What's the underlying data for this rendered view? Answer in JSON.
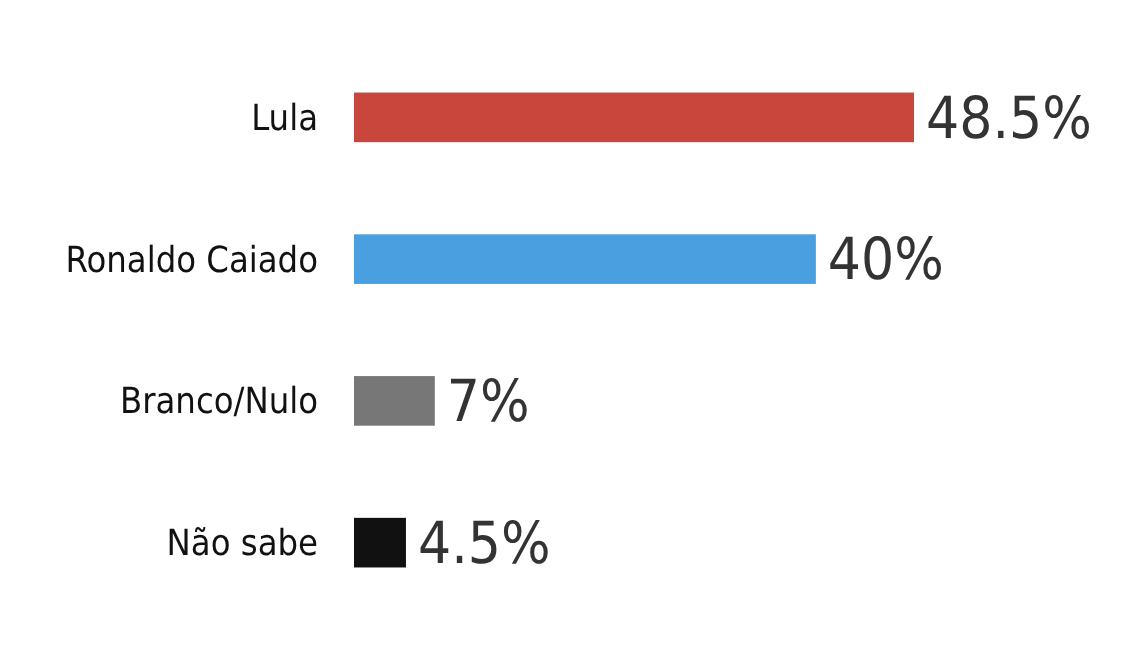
{
  "chart_data": {
    "type": "bar",
    "orientation": "horizontal",
    "categories": [
      "Lula",
      "Ronaldo Caiado",
      "Branco/Nulo",
      "Não sabe"
    ],
    "values": [
      48.5,
      40,
      7,
      4.5
    ],
    "colors": [
      "#c8463c",
      "#4a9fe0",
      "#777777",
      "#111111"
    ],
    "value_labels": [
      "48.5%",
      "40%",
      "7%",
      "4.5%"
    ]
  }
}
